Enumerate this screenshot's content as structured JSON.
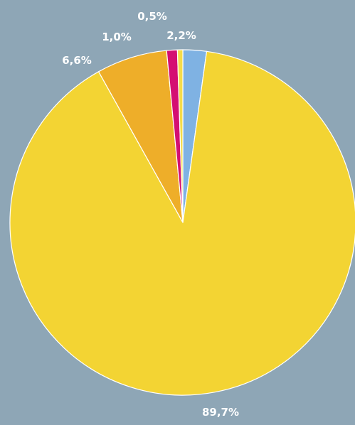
{
  "chart_data": {
    "type": "pie",
    "title": "",
    "slices": [
      {
        "label": "2,2%",
        "value": 2.2,
        "color": "#7fb2e3"
      },
      {
        "label": "89,7%",
        "value": 89.7,
        "color": "#f3d433"
      },
      {
        "label": "6,6%",
        "value": 6.6,
        "color": "#eeae29"
      },
      {
        "label": "1,0%",
        "value": 1.0,
        "color": "#d40f72"
      },
      {
        "label": "0,5%",
        "value": 0.5,
        "color": "#f4dc4a"
      }
    ],
    "start_angle_deg": 0,
    "direction": "clockwise",
    "background": "#8ea6b6",
    "slice_border": "#ffffff"
  }
}
